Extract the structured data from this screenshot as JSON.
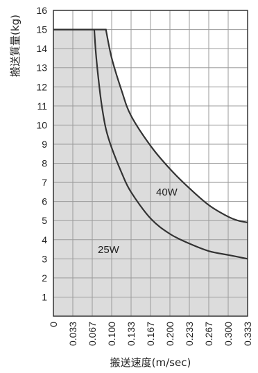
{
  "chart_data": {
    "type": "area",
    "xlabel": "搬送速度(m/sec)",
    "ylabel": "搬送質量(kg)",
    "xlim": [
      0,
      0.333
    ],
    "ylim": [
      0,
      16
    ],
    "x_ticks": [
      "0",
      "0.033",
      "0.067",
      "0.100",
      "0.133",
      "0.167",
      "0.200",
      "0.233",
      "0.267",
      "0.300",
      "0.333"
    ],
    "y_ticks": [
      "1",
      "2",
      "3",
      "4",
      "5",
      "6",
      "7",
      "8",
      "9",
      "10",
      "11",
      "12",
      "13",
      "14",
      "15",
      "16"
    ],
    "grid": true,
    "series": [
      {
        "name": "25W",
        "x": [
          0,
          0.07,
          0.073,
          0.078,
          0.083,
          0.09,
          0.1,
          0.117,
          0.133,
          0.167,
          0.2,
          0.233,
          0.267,
          0.3,
          0.333
        ],
        "y": [
          15.0,
          15.0,
          13.7,
          12.2,
          11.0,
          9.8,
          8.8,
          7.5,
          6.5,
          5.1,
          4.3,
          3.8,
          3.4,
          3.2,
          3.0
        ]
      },
      {
        "name": "40W",
        "x": [
          0,
          0.09,
          0.1,
          0.117,
          0.133,
          0.167,
          0.2,
          0.233,
          0.267,
          0.3,
          0.317,
          0.333
        ],
        "y": [
          15.0,
          15.0,
          13.5,
          11.8,
          10.5,
          8.9,
          7.7,
          6.7,
          5.8,
          5.2,
          5.0,
          4.9
        ]
      }
    ]
  }
}
